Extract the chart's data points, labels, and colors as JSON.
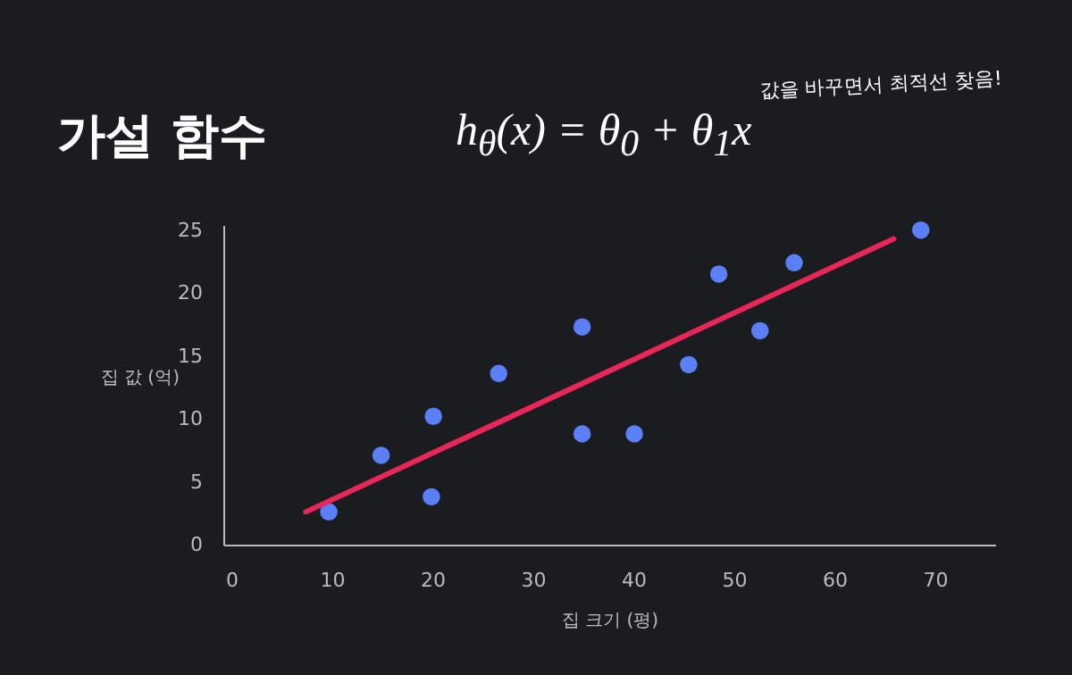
{
  "chart_data": {
    "type": "scatter",
    "title": "가설 함수",
    "subtitle": "h$_{θ}$(x) = θ$_{0}$ + θ$_{1}$x",
    "annotations": [
      "값을 바꾸면서 최적선 찾음!"
    ],
    "xlabel": "집 크기 (평)",
    "ylabel": "집 값 (억)",
    "xlim": [
      -0.8,
      76
    ],
    "ylim": [
      0,
      25.4
    ],
    "xticks": [
      0,
      10,
      20,
      30,
      40,
      50,
      60,
      70
    ],
    "yticks": [
      0,
      5,
      10,
      15,
      20,
      25
    ],
    "series": [
      {
        "color": "#5b7ff7",
        "x": [
          9.7,
          14.9,
          19.9,
          20.1,
          26.6,
          34.9,
          34.9,
          40.1,
          45.5,
          48.5,
          52.6,
          56.0,
          68.6
        ],
        "values": [
          2.6,
          7.1,
          3.8,
          10.2,
          13.6,
          17.3,
          8.8,
          8.8,
          14.3,
          21.5,
          17.0,
          22.4,
          25.0
        ]
      },
      {
        "type": "line",
        "color": "#e8265a",
        "x": [
          7.4,
          65.9
        ],
        "values": [
          2.6,
          24.3
        ]
      }
    ]
  }
}
